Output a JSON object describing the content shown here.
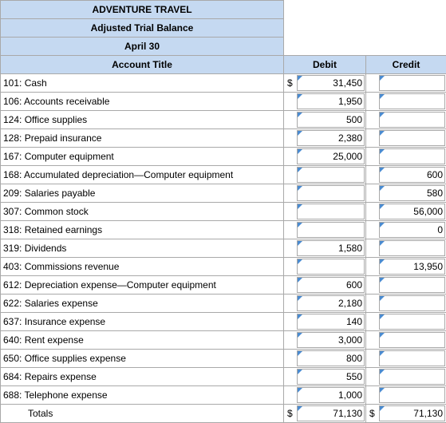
{
  "header": {
    "company": "ADVENTURE TRAVEL",
    "report": "Adjusted Trial Balance",
    "date": "April 30"
  },
  "columns": {
    "account": "Account Title",
    "debit": "Debit",
    "credit": "Credit"
  },
  "currency_symbol": "$",
  "rows": [
    {
      "account": "101: Cash",
      "debit": "31,450",
      "credit": "",
      "debit_cur": "$"
    },
    {
      "account": "106: Accounts receivable",
      "debit": "1,950",
      "credit": ""
    },
    {
      "account": "124: Office supplies",
      "debit": "500",
      "credit": ""
    },
    {
      "account": "128: Prepaid insurance",
      "debit": "2,380",
      "credit": ""
    },
    {
      "account": "167: Computer equipment",
      "debit": "25,000",
      "credit": ""
    },
    {
      "account": "168: Accumulated depreciation—Computer equipment",
      "debit": "",
      "credit": "600"
    },
    {
      "account": "209: Salaries payable",
      "debit": "",
      "credit": "580"
    },
    {
      "account": "307: Common stock",
      "debit": "",
      "credit": "56,000"
    },
    {
      "account": "318: Retained earnings",
      "debit": "",
      "credit": "0"
    },
    {
      "account": "319: Dividends",
      "debit": "1,580",
      "credit": ""
    },
    {
      "account": "403: Commissions revenue",
      "debit": "",
      "credit": "13,950"
    },
    {
      "account": "612: Depreciation expense—Computer equipment",
      "debit": "600",
      "credit": ""
    },
    {
      "account": "622: Salaries expense",
      "debit": "2,180",
      "credit": ""
    },
    {
      "account": "637: Insurance expense",
      "debit": "140",
      "credit": ""
    },
    {
      "account": "640: Rent expense",
      "debit": "3,000",
      "credit": ""
    },
    {
      "account": "650: Office supplies expense",
      "debit": "800",
      "credit": ""
    },
    {
      "account": "684: Repairs expense",
      "debit": "550",
      "credit": ""
    },
    {
      "account": "688: Telephone expense",
      "debit": "1,000",
      "credit": ""
    }
  ],
  "totals": {
    "label": "Totals",
    "debit_cur": "$",
    "debit": "71,130",
    "credit_cur": "$",
    "credit": "71,130"
  }
}
